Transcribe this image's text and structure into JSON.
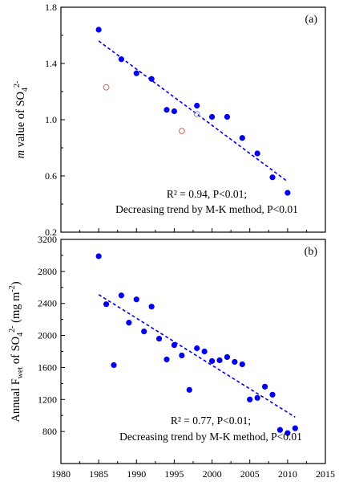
{
  "chart_data": [
    {
      "type": "scatter",
      "panel_label": "(a)",
      "ylabel": {
        "pre": "m",
        "post": " value of SO",
        "sub": "4",
        "sup": "2-"
      },
      "xlim": [
        1980,
        2015
      ],
      "ylim": [
        0.2,
        1.8
      ],
      "yticks": [
        "0.2",
        "0.6",
        "1.0",
        "1.4",
        "1.8"
      ],
      "grid": false,
      "series": [
        {
          "marker": "filled-circle",
          "color": "#0000ee",
          "x": [
            1985,
            1988,
            1990,
            1992,
            1994,
            1995,
            1998,
            2000,
            2002,
            2004,
            2006,
            2008,
            2010
          ],
          "y": [
            1.64,
            1.43,
            1.33,
            1.29,
            1.07,
            1.06,
            1.1,
            1.02,
            1.02,
            0.87,
            0.76,
            0.59,
            0.48
          ]
        },
        {
          "marker": "open-circle",
          "color": "#e06060",
          "x": [
            1986,
            1996
          ],
          "y": [
            1.23,
            0.92
          ]
        },
        {
          "marker": "open-circle",
          "color": "#8899cc",
          "x": [
            1998
          ],
          "y": [
            1.04
          ]
        }
      ],
      "trend": {
        "x": [
          1985,
          2010
        ],
        "y": [
          1.56,
          0.56
        ],
        "style": "dashed",
        "color": "#0000ee"
      },
      "annotation": {
        "line1": "R² = 0.94, P<0.01;",
        "line2": "Decreasing trend by M-K method, P<0.01"
      }
    },
    {
      "type": "scatter",
      "panel_label": "(b)",
      "ylabel": {
        "pre": "Annual F",
        "sub1": "wet",
        "mid": " of SO",
        "sub": "4",
        "sup": "2-",
        "post": " (mg m",
        "sup2": "-2",
        "end": ")"
      },
      "xlim": [
        1980,
        2015
      ],
      "xticks": [
        "1980",
        "1985",
        "1990",
        "1995",
        "2000",
        "2005",
        "2010",
        "2015"
      ],
      "ylim": [
        400,
        3200
      ],
      "yticks": [
        "800",
        "1200",
        "1600",
        "2000",
        "2400",
        "2800",
        "3200"
      ],
      "grid": false,
      "series": [
        {
          "marker": "filled-circle",
          "color": "#0000ee",
          "x": [
            1985,
            1986,
            1987,
            1988,
            1989,
            1990,
            1991,
            1992,
            1993,
            1994,
            1995,
            1996,
            1997,
            1998,
            1999,
            2000,
            2001,
            2002,
            2003,
            2004,
            2005,
            2006,
            2007,
            2008,
            2009,
            2010,
            2011
          ],
          "y": [
            2990,
            2390,
            1630,
            2500,
            2160,
            2450,
            2050,
            2360,
            1960,
            1700,
            1880,
            1750,
            1320,
            1840,
            1800,
            1680,
            1690,
            1730,
            1670,
            1640,
            1200,
            1220,
            1360,
            1260,
            820,
            780,
            840
          ]
        }
      ],
      "trend": {
        "x": [
          1985,
          2011
        ],
        "y": [
          2510,
          980
        ],
        "style": "dashed",
        "color": "#0000ee"
      },
      "annotation": {
        "line1": "R² = 0.77, P<0.01;",
        "line2": "Decreasing trend by M-K method, P<0.01"
      }
    }
  ]
}
